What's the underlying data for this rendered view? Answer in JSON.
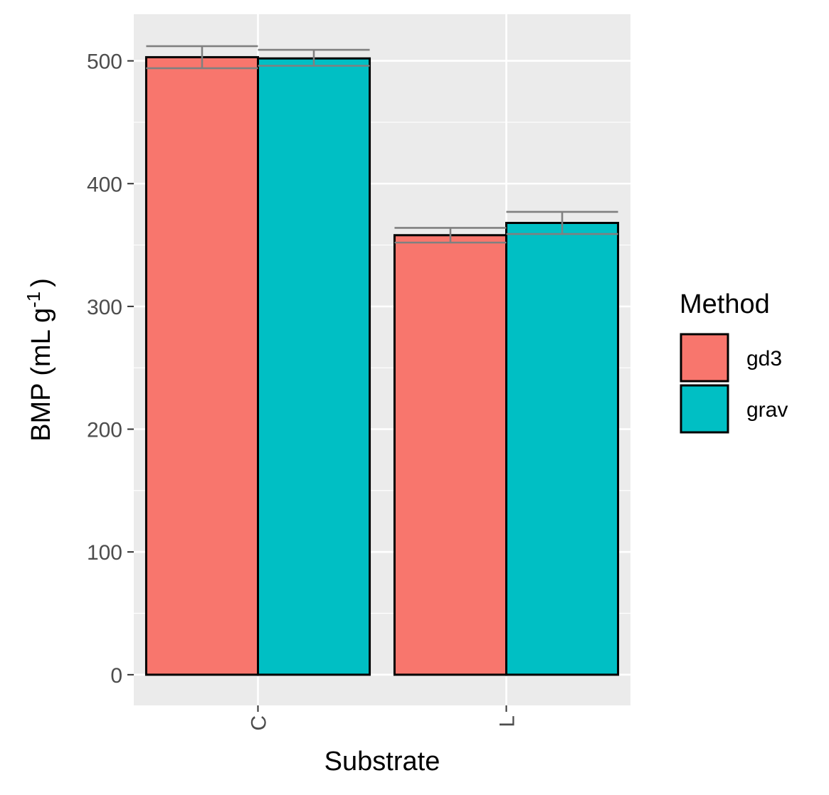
{
  "chart_data": {
    "type": "bar",
    "categories": [
      "C",
      "L"
    ],
    "series": [
      {
        "name": "gd3",
        "color": "#F8766D",
        "values": [
          503,
          358
        ],
        "error": [
          [
            494,
            512
          ],
          [
            352,
            364
          ]
        ]
      },
      {
        "name": "grav",
        "color": "#00BFC4",
        "values": [
          502,
          368
        ],
        "error": [
          [
            496,
            509
          ],
          [
            359,
            377
          ]
        ]
      }
    ],
    "xlabel": "Substrate",
    "ylabel_main": "BMP (mL g",
    "ylabel_sup": "-1",
    "ylabel_end": ")",
    "ylim": [
      -25,
      538
    ],
    "yticks": [
      0,
      100,
      200,
      300,
      400,
      500
    ],
    "legend": {
      "title": "Method",
      "position": "right"
    },
    "grid": true,
    "panel_color": "#EBEBEB",
    "errorbar_color": "#808080"
  }
}
